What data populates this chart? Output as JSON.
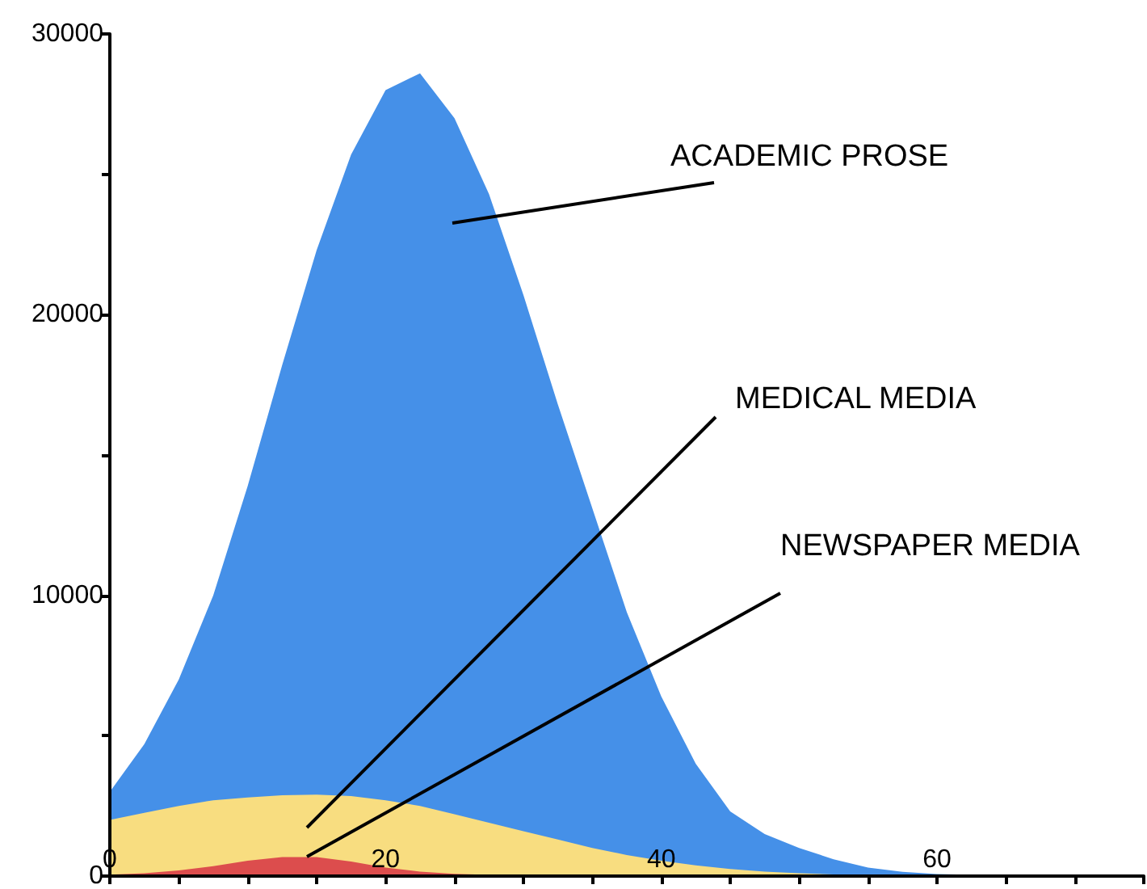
{
  "chart_data": {
    "type": "area",
    "x": [
      0,
      2.5,
      5,
      7.5,
      10,
      12.5,
      15,
      17.5,
      20,
      22.5,
      25,
      27.5,
      30,
      32.5,
      35,
      37.5,
      40,
      42.5,
      45,
      47.5,
      50,
      52.5,
      55,
      57.5,
      60,
      65,
      70,
      75
    ],
    "series": [
      {
        "color": "#4590e8",
        "values": [
          3000,
          4700,
          7000,
          10000,
          13900,
          18200,
          22300,
          25700,
          28000,
          28600,
          27000,
          24300,
          20700,
          16800,
          13100,
          9400,
          6400,
          4000,
          2300,
          1500,
          1000,
          600,
          300,
          150,
          70,
          20,
          0,
          0
        ]
      },
      {
        "color": "#f8dd80",
        "values": [
          2000,
          2250,
          2500,
          2700,
          2800,
          2880,
          2900,
          2850,
          2700,
          2500,
          2200,
          1900,
          1600,
          1300,
          1000,
          750,
          550,
          380,
          250,
          160,
          100,
          60,
          40,
          20,
          10,
          0,
          0,
          0
        ]
      },
      {
        "color": "#dc4d4d",
        "values": [
          50,
          100,
          200,
          350,
          550,
          680,
          680,
          520,
          300,
          160,
          80,
          40,
          20,
          10,
          0,
          0,
          0,
          0,
          0,
          0,
          0,
          0,
          0,
          0,
          0,
          0,
          0,
          0
        ]
      }
    ],
    "xlim": [
      0,
      75
    ],
    "ylim": [
      0,
      30000
    ],
    "xticks": [
      0,
      {
        "value": 5,
        "label": null
      },
      {
        "value": 10,
        "label": null
      },
      {
        "value": 15,
        "label": null
      },
      20,
      {
        "value": 25,
        "label": null
      },
      {
        "value": 30,
        "label": null
      },
      {
        "value": 35,
        "label": null
      },
      40,
      {
        "value": 45,
        "label": null
      },
      {
        "value": 50,
        "label": null
      },
      {
        "value": 55,
        "label": null
      },
      60,
      {
        "value": 65,
        "label": null
      },
      {
        "value": 70,
        "label": null
      },
      {
        "value": 75,
        "label": null
      }
    ],
    "yticks": [
      0,
      {
        "value": 5000,
        "label": null
      },
      10000,
      {
        "value": 15000,
        "label": null
      },
      20000,
      {
        "value": 25000,
        "label": null
      },
      30000
    ],
    "annotations": [
      "ACADEMIC PROSE",
      "MEDICAL MEDIA",
      "NEWSPAPER MEDIA"
    ],
    "grid": false
  }
}
